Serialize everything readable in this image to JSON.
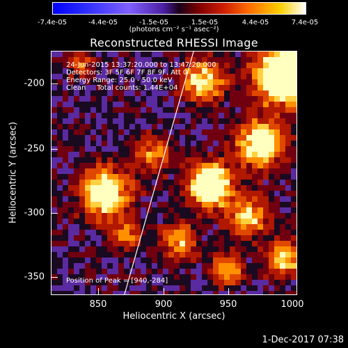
{
  "colorbar": {
    "ticks": [
      "-7.4e-05",
      "-4.4e-05",
      "-1.5e-05",
      "1.5e-05",
      "4.4e-05",
      "7.4e-05"
    ],
    "units": "(photons cm⁻² s⁻¹ asec⁻²)"
  },
  "title": "Reconstructed RHESSI Image",
  "info": {
    "time": "24-Jun-2015 13:37:20.000 to 13:47:20.000",
    "detectors": "Detectors: 3F 5F 6F 7F 8F 9F, Att 0",
    "energy": "Energy Range: 25.0 - 50.0 keV",
    "clean": "Clean     Total counts: 1.44E+04",
    "peak": "Position of Peak = [940,-284]"
  },
  "axes": {
    "xlabel": "Heliocentric X (arcsec)",
    "ylabel": "Heliocentric Y (arcsec)",
    "xticks": [
      "850",
      "900",
      "950",
      "1000"
    ],
    "yticks": [
      "-200",
      "-250",
      "-300",
      "-350"
    ],
    "xrange": [
      812,
      1000
    ],
    "yrange": [
      -366,
      -180
    ]
  },
  "limb_line": {
    "x1": 868,
    "y1": -366,
    "x2": 921,
    "y2": -180
  },
  "colors": {
    "negative": "#0000ff",
    "mid_low": "#4a1ea0",
    "zero": "#000000",
    "positive": "#ff7000",
    "peak": "#ffffff"
  },
  "datestamp": "1-Dec-2017 07:38"
}
